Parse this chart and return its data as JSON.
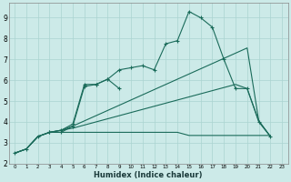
{
  "xlabel": "Humidex (Indice chaleur)",
  "bg_color": "#cceae8",
  "grid_color": "#aad4d0",
  "line_color": "#1a6b5a",
  "xlim": [
    -0.5,
    23.5
  ],
  "ylim": [
    2.0,
    9.7
  ],
  "xticks": [
    0,
    1,
    2,
    3,
    4,
    5,
    6,
    7,
    8,
    9,
    10,
    11,
    12,
    13,
    14,
    15,
    16,
    17,
    18,
    19,
    20,
    21,
    22,
    23
  ],
  "yticks": [
    2,
    3,
    4,
    5,
    6,
    7,
    8,
    9
  ],
  "line_flat_x": [
    0,
    1,
    2,
    3,
    4,
    5,
    6,
    7,
    8,
    9,
    10,
    11,
    12,
    13,
    14,
    15,
    16,
    17,
    18,
    19,
    20,
    21,
    22
  ],
  "line_flat_y": [
    2.5,
    2.7,
    3.3,
    3.5,
    3.5,
    3.5,
    3.5,
    3.5,
    3.5,
    3.5,
    3.5,
    3.5,
    3.5,
    3.5,
    3.5,
    3.35,
    3.35,
    3.35,
    3.35,
    3.35,
    3.35,
    3.35,
    3.35
  ],
  "line_curved_x": [
    0,
    1,
    2,
    3,
    4,
    5,
    6,
    7,
    8,
    9,
    10,
    11,
    12,
    13,
    14,
    15,
    16,
    17,
    18,
    19,
    20,
    21,
    22
  ],
  "line_curved_y": [
    2.5,
    2.7,
    3.3,
    3.5,
    3.5,
    3.8,
    5.7,
    5.8,
    6.05,
    6.5,
    6.6,
    6.7,
    6.5,
    7.75,
    7.9,
    9.3,
    9.0,
    8.55,
    7.0,
    5.6,
    5.6,
    4.0,
    3.3
  ],
  "line_diag1_x": [
    0,
    1,
    2,
    3,
    4,
    5,
    6,
    7,
    8,
    9,
    10,
    11,
    12,
    13,
    14,
    15,
    16,
    17,
    18,
    19,
    20,
    21,
    22
  ],
  "line_diag1_y": [
    2.5,
    2.7,
    3.3,
    3.5,
    3.6,
    3.8,
    4.05,
    4.3,
    4.55,
    4.8,
    5.05,
    5.3,
    5.55,
    5.8,
    6.05,
    6.3,
    6.55,
    6.8,
    7.05,
    7.3,
    7.55,
    4.05,
    3.3
  ],
  "line_diag2_x": [
    0,
    1,
    2,
    3,
    4,
    5,
    6,
    7,
    8,
    9,
    10,
    11,
    12,
    13,
    14,
    15,
    16,
    17,
    18,
    19,
    20,
    21,
    22
  ],
  "line_diag2_y": [
    2.5,
    2.7,
    3.3,
    3.5,
    3.6,
    3.7,
    3.85,
    4.0,
    4.15,
    4.3,
    4.45,
    4.6,
    4.75,
    4.9,
    5.05,
    5.2,
    5.35,
    5.5,
    5.65,
    5.8,
    5.6,
    4.05,
    3.3
  ],
  "line_curved2_x": [
    3,
    4,
    5,
    6,
    7,
    8,
    9
  ],
  "line_curved2_y": [
    3.5,
    3.6,
    3.9,
    5.8,
    5.8,
    6.05,
    5.6
  ]
}
